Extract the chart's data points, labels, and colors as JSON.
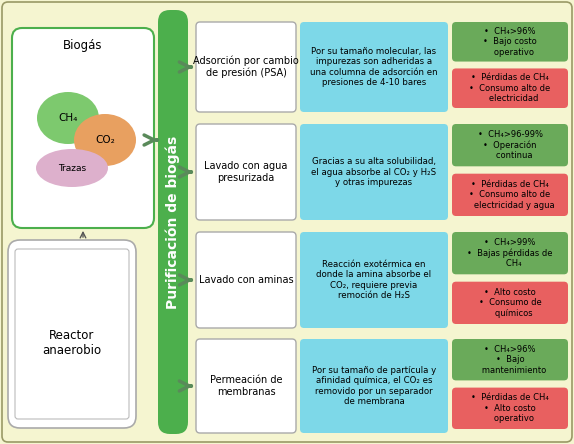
{
  "bg_color": "#f5f5d0",
  "title": "Purificación de biogás",
  "reactor_label": "Reactor\nanaerobio",
  "biogas_label": "Biogás",
  "green_col_color": "#4caf4c",
  "arrow_color": "#5a8a5a",
  "cyan_box_color": "#7dd8e8",
  "green_box_color": "#6aaa5a",
  "red_box_color": "#e86060",
  "rows": [
    {
      "process": "Adsorción por cambio\nde presión (PSA)",
      "description": "Por su tamaño molecular, las\nimpurezas son adheridas a\nuna columna de adsorción en\npresiones de 4-10 bares",
      "pro": "•  CH₄>96%\n•  Bajo costo\n   operativo",
      "con": "•  Pérdidas de CH₄\n•  Consumo alto de\n   electricidad"
    },
    {
      "process": "Lavado con agua\npresurizada",
      "description": "Gracias a su alta solubilidad,\nel agua absorbe al CO₂ y H₂S\ny otras impurezas",
      "pro": "•  CH₄>96-99%\n•  Operación\n   continua",
      "con": "•  Pérdidas de CH₄\n•  Consumo alto de\n   electricidad y agua"
    },
    {
      "process": "Lavado con aminas",
      "description": "Reacción exotérmica en\ndonde la amina absorbe el\nCO₂, requiere previa\nremoción de H₂S",
      "pro": "•  CH₄>99%\n•  Bajas pérdidas de\n   CH₄",
      "con": "•  Alto costo\n•  Consumo de\n   químicos"
    },
    {
      "process": "Permeación de\nmembranas",
      "description": "Por su tamaño de partícula y\nafinidad química, el CO₂ es\nremovido por un separador\nde membrana",
      "pro": "•  CH₄>96%\n•  Bajo\n   mantenimiento",
      "con": "•  Pérdidas de CH₄\n•  Alto costo\n   operativo"
    }
  ]
}
